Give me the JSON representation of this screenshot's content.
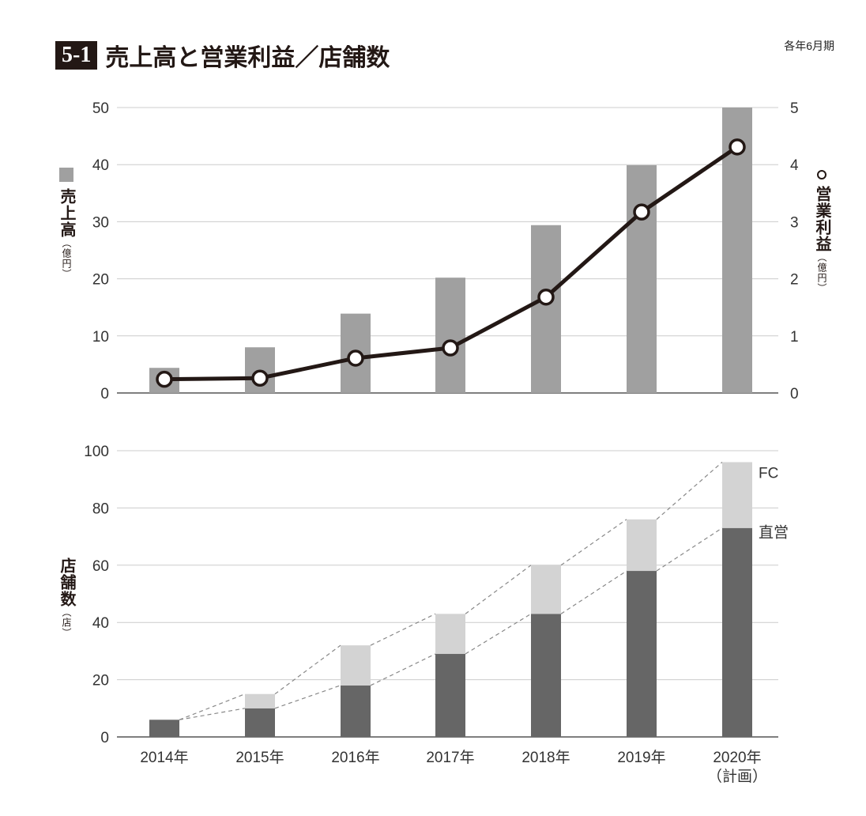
{
  "header": {
    "badge": "5-1",
    "title": "売上高と営業利益／店舗数",
    "note": "各年6月期"
  },
  "colors": {
    "sales_bar": "#a0a0a0",
    "profit_line": "#231815",
    "direct": "#666666",
    "fc": "#d3d3d3",
    "grid": "#cccccc"
  },
  "chart_data": [
    {
      "type": "bar+line",
      "categories": [
        "2014年",
        "2015年",
        "2016年",
        "2017年",
        "2018年",
        "2019年",
        "2020年"
      ],
      "left_axis": {
        "label": "売上高",
        "unit": "（億円）",
        "ylim": [
          0,
          50
        ],
        "ticks": [
          0,
          10,
          20,
          30,
          40,
          50
        ]
      },
      "right_axis": {
        "label": "営業利益",
        "unit": "（億円）",
        "ylim": [
          0,
          5
        ],
        "ticks": [
          0,
          1,
          2,
          3,
          4,
          5
        ]
      },
      "series": [
        {
          "name": "売上高",
          "type": "bar",
          "axis": "left",
          "values": [
            4.4,
            8.0,
            13.9,
            20.2,
            29.4,
            39.9,
            50.0
          ]
        },
        {
          "name": "営業利益",
          "type": "line",
          "axis": "right",
          "values": [
            0.24,
            0.26,
            0.61,
            0.79,
            1.68,
            3.17,
            4.31
          ]
        }
      ],
      "grid": true
    },
    {
      "type": "stacked-bar",
      "categories": [
        "2014年",
        "2015年",
        "2016年",
        "2017年",
        "2018年",
        "2019年",
        "2020年"
      ],
      "category_notes": [
        "",
        "",
        "",
        "",
        "",
        "",
        "（計画）"
      ],
      "ylabel": "店舗数",
      "yunit": "（店）",
      "ylim": [
        0,
        100
      ],
      "ticks": [
        0,
        20,
        40,
        60,
        80,
        100
      ],
      "series": [
        {
          "name": "直営",
          "values": [
            6,
            10,
            18,
            29,
            43,
            58,
            73
          ]
        },
        {
          "name": "FC",
          "values": [
            0,
            5,
            14,
            14,
            17,
            18,
            23
          ]
        }
      ],
      "grid": true
    }
  ]
}
